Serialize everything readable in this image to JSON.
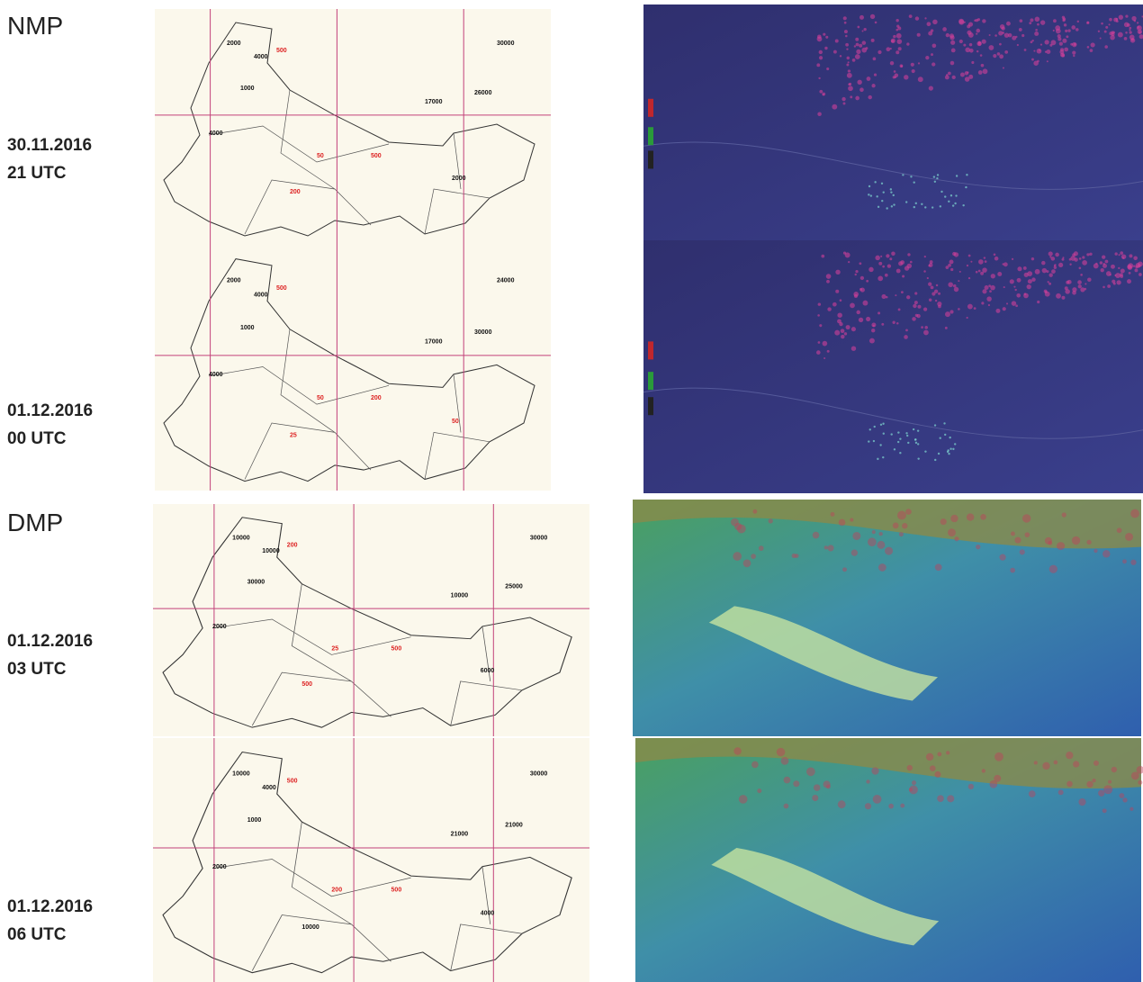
{
  "sections": [
    {
      "title": "NMP",
      "rows": [
        {
          "date": "30.11.2016",
          "time": "21 UTC",
          "labels": [
            {
              "text": "2000",
              "color": "black"
            },
            {
              "text": "4000",
              "color": "black"
            },
            {
              "text": "500",
              "color": "red"
            },
            {
              "text": "1000",
              "color": "black"
            },
            {
              "text": "4000",
              "color": "black"
            },
            {
              "text": "50",
              "color": "red"
            },
            {
              "text": "500",
              "color": "red"
            },
            {
              "text": "30000",
              "color": "black"
            },
            {
              "text": "26000",
              "color": "black"
            },
            {
              "text": "17000",
              "color": "black"
            },
            {
              "text": "2000",
              "color": "black"
            },
            {
              "text": "200",
              "color": "red"
            }
          ]
        },
        {
          "date": "01.12.2016",
          "time": "00 UTC",
          "labels": [
            {
              "text": "2000",
              "color": "black"
            },
            {
              "text": "4000",
              "color": "black"
            },
            {
              "text": "500",
              "color": "red"
            },
            {
              "text": "1000",
              "color": "black"
            },
            {
              "text": "4000",
              "color": "black"
            },
            {
              "text": "50",
              "color": "red"
            },
            {
              "text": "200",
              "color": "red"
            },
            {
              "text": "24000",
              "color": "black"
            },
            {
              "text": "30000",
              "color": "black"
            },
            {
              "text": "17000",
              "color": "black"
            },
            {
              "text": "50",
              "color": "red"
            },
            {
              "text": "25",
              "color": "red"
            }
          ]
        }
      ]
    },
    {
      "title": "DMP",
      "rows": [
        {
          "date": "01.12.2016",
          "time": "03 UTC",
          "labels": [
            {
              "text": "10000",
              "color": "black"
            },
            {
              "text": "10000",
              "color": "black"
            },
            {
              "text": "200",
              "color": "red"
            },
            {
              "text": "30000",
              "color": "black"
            },
            {
              "text": "2000",
              "color": "black"
            },
            {
              "text": "25",
              "color": "red"
            },
            {
              "text": "500",
              "color": "red"
            },
            {
              "text": "30000",
              "color": "black"
            },
            {
              "text": "25000",
              "color": "black"
            },
            {
              "text": "10000",
              "color": "black"
            },
            {
              "text": "6000",
              "color": "black"
            },
            {
              "text": "500",
              "color": "red"
            }
          ]
        },
        {
          "date": "01.12.2016",
          "time": "06 UTC",
          "labels": [
            {
              "text": "10000",
              "color": "black"
            },
            {
              "text": "4000",
              "color": "black"
            },
            {
              "text": "500",
              "color": "red"
            },
            {
              "text": "1000",
              "color": "black"
            },
            {
              "text": "2000",
              "color": "black"
            },
            {
              "text": "200",
              "color": "red"
            },
            {
              "text": "500",
              "color": "red"
            },
            {
              "text": "30000",
              "color": "black"
            },
            {
              "text": "21000",
              "color": "black"
            },
            {
              "text": "21000",
              "color": "black"
            },
            {
              "text": "4000",
              "color": "black"
            },
            {
              "text": "10000",
              "color": "black"
            }
          ]
        }
      ]
    }
  ]
}
